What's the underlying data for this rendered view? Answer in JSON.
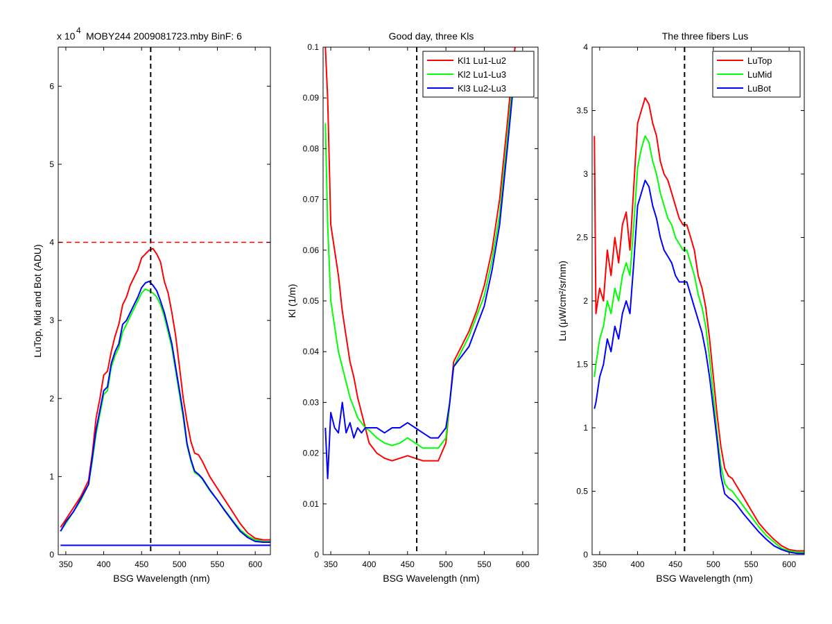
{
  "figure": {
    "background": "#ffffff"
  },
  "chart_data": [
    {
      "type": "line",
      "title": "MOBY244  2009081723.mby BinF: 6",
      "exponent_label": "x 10",
      "exponent_power": "4",
      "xlabel": "BSG Wavelength (nm)",
      "ylabel": "LuTop, Mid and Bot (ADU)",
      "xlim": [
        340,
        620
      ],
      "ylim": [
        0,
        6.5
      ],
      "y_scale_factor": 10000,
      "xticks": [
        350,
        400,
        450,
        500,
        550,
        600
      ],
      "yticks": [
        0,
        1,
        2,
        3,
        4,
        5,
        6
      ],
      "grid": false,
      "legend": null,
      "annotations": [
        {
          "kind": "vline",
          "x": 462,
          "color": "#000000",
          "dash": true
        },
        {
          "kind": "hline",
          "y": 4.0,
          "color": "#ff0000",
          "dash": true
        }
      ],
      "series": [
        {
          "color": "#ff0000",
          "x": [
            343,
            350,
            360,
            370,
            380,
            385,
            390,
            395,
            400,
            405,
            410,
            415,
            420,
            425,
            430,
            435,
            440,
            445,
            450,
            455,
            460,
            465,
            470,
            475,
            480,
            485,
            490,
            495,
            500,
            505,
            510,
            515,
            520,
            525,
            530,
            540,
            550,
            560,
            570,
            580,
            590,
            600,
            610,
            620
          ],
          "y": [
            0.35,
            0.45,
            0.6,
            0.75,
            0.95,
            1.3,
            1.75,
            2.0,
            2.3,
            2.35,
            2.6,
            2.8,
            2.95,
            3.2,
            3.3,
            3.45,
            3.55,
            3.65,
            3.8,
            3.85,
            3.9,
            3.92,
            3.85,
            3.75,
            3.5,
            3.35,
            3.1,
            2.8,
            2.4,
            2.0,
            1.7,
            1.45,
            1.3,
            1.28,
            1.2,
            1.0,
            0.85,
            0.7,
            0.55,
            0.4,
            0.28,
            0.21,
            0.19,
            0.19
          ]
        },
        {
          "color": "#00ff00",
          "x": [
            343,
            350,
            360,
            370,
            380,
            385,
            390,
            395,
            400,
            405,
            410,
            415,
            420,
            425,
            430,
            435,
            440,
            445,
            450,
            455,
            460,
            465,
            470,
            475,
            480,
            485,
            490,
            495,
            500,
            505,
            510,
            515,
            520,
            525,
            530,
            540,
            550,
            560,
            570,
            580,
            590,
            600,
            610,
            620
          ],
          "y": [
            0.3,
            0.4,
            0.55,
            0.7,
            0.9,
            1.2,
            1.55,
            1.8,
            2.05,
            2.1,
            2.4,
            2.55,
            2.65,
            2.85,
            2.95,
            3.05,
            3.15,
            3.25,
            3.35,
            3.4,
            3.38,
            3.35,
            3.3,
            3.2,
            3.05,
            2.85,
            2.65,
            2.35,
            2.05,
            1.75,
            1.4,
            1.2,
            1.05,
            1.02,
            0.97,
            0.82,
            0.7,
            0.57,
            0.44,
            0.32,
            0.24,
            0.19,
            0.17,
            0.17
          ]
        },
        {
          "color": "#0000ff",
          "x": [
            343,
            350,
            360,
            370,
            380,
            385,
            390,
            395,
            400,
            405,
            410,
            415,
            420,
            425,
            430,
            435,
            440,
            445,
            450,
            455,
            460,
            465,
            470,
            475,
            480,
            485,
            490,
            495,
            500,
            505,
            510,
            515,
            520,
            525,
            530,
            540,
            550,
            560,
            570,
            580,
            590,
            600,
            610,
            620
          ],
          "y": [
            0.3,
            0.42,
            0.55,
            0.72,
            0.9,
            1.25,
            1.6,
            1.85,
            2.1,
            2.15,
            2.45,
            2.6,
            2.7,
            2.95,
            3.0,
            3.1,
            3.2,
            3.3,
            3.42,
            3.48,
            3.5,
            3.45,
            3.38,
            3.25,
            3.1,
            2.9,
            2.7,
            2.4,
            2.1,
            1.8,
            1.42,
            1.22,
            1.07,
            1.03,
            0.98,
            0.83,
            0.7,
            0.56,
            0.43,
            0.3,
            0.22,
            0.17,
            0.16,
            0.16
          ]
        },
        {
          "color": "#0000ff",
          "x": [
            343,
            620
          ],
          "y": [
            0.12,
            0.12
          ]
        }
      ]
    },
    {
      "type": "line",
      "title": "Good day, three Kls",
      "xlabel": "BSG Wavelength (nm)",
      "ylabel": "Kl (1/m)",
      "xlim": [
        340,
        620
      ],
      "ylim": [
        0,
        0.1
      ],
      "xticks": [
        350,
        400,
        450,
        500,
        550,
        600
      ],
      "yticks": [
        0,
        0.01,
        0.02,
        0.03,
        0.04,
        0.05,
        0.06,
        0.07,
        0.08,
        0.09,
        0.1
      ],
      "grid": false,
      "legend": "top-right",
      "annotations": [
        {
          "kind": "vline",
          "x": 462,
          "color": "#000000",
          "dash": true
        }
      ],
      "series": [
        {
          "name": "Kl1 Lu1-Lu2",
          "color": "#ff0000",
          "x": [
            343,
            346,
            350,
            355,
            360,
            365,
            370,
            375,
            380,
            385,
            390,
            395,
            400,
            410,
            420,
            430,
            440,
            450,
            460,
            470,
            480,
            490,
            500,
            505,
            510,
            520,
            530,
            540,
            550,
            560,
            570,
            580,
            585,
            590
          ],
          "y": [
            0.1,
            0.09,
            0.065,
            0.06,
            0.055,
            0.048,
            0.043,
            0.038,
            0.035,
            0.031,
            0.028,
            0.025,
            0.022,
            0.02,
            0.019,
            0.0185,
            0.019,
            0.0195,
            0.019,
            0.0185,
            0.0185,
            0.0185,
            0.022,
            0.03,
            0.038,
            0.041,
            0.044,
            0.048,
            0.053,
            0.06,
            0.07,
            0.085,
            0.093,
            0.1
          ]
        },
        {
          "name": "Kl2 Lu1-Lu3",
          "color": "#00ff00",
          "x": [
            343,
            346,
            350,
            355,
            360,
            365,
            370,
            375,
            380,
            385,
            390,
            395,
            400,
            410,
            420,
            430,
            440,
            450,
            460,
            470,
            480,
            490,
            500,
            505,
            510,
            520,
            530,
            540,
            550,
            560,
            570,
            580,
            585,
            590
          ],
          "y": [
            0.085,
            0.065,
            0.05,
            0.045,
            0.04,
            0.037,
            0.034,
            0.031,
            0.029,
            0.027,
            0.026,
            0.025,
            0.0245,
            0.023,
            0.022,
            0.0215,
            0.022,
            0.023,
            0.022,
            0.021,
            0.021,
            0.021,
            0.023,
            0.03,
            0.037,
            0.04,
            0.043,
            0.047,
            0.051,
            0.058,
            0.067,
            0.082,
            0.09,
            0.098
          ]
        },
        {
          "name": "Kl3 Lu2-Lu3",
          "color": "#0000ff",
          "x": [
            343,
            346,
            350,
            355,
            360,
            365,
            370,
            375,
            380,
            385,
            390,
            395,
            400,
            410,
            420,
            430,
            440,
            450,
            460,
            470,
            480,
            490,
            500,
            505,
            510,
            520,
            530,
            540,
            550,
            560,
            570,
            580,
            585,
            590
          ],
          "y": [
            0.025,
            0.015,
            0.028,
            0.025,
            0.024,
            0.03,
            0.024,
            0.026,
            0.023,
            0.025,
            0.024,
            0.025,
            0.025,
            0.025,
            0.024,
            0.025,
            0.025,
            0.026,
            0.025,
            0.024,
            0.023,
            0.023,
            0.025,
            0.03,
            0.037,
            0.039,
            0.041,
            0.045,
            0.049,
            0.056,
            0.065,
            0.08,
            0.088,
            0.096
          ]
        }
      ]
    },
    {
      "type": "line",
      "title": "The three fibers Lus",
      "xlabel": "BSG Wavelength (nm)",
      "ylabel": "Lu (μW/cm²/sr/nm)",
      "xlim": [
        340,
        620
      ],
      "ylim": [
        0,
        4
      ],
      "xticks": [
        350,
        400,
        450,
        500,
        550,
        600
      ],
      "yticks": [
        0,
        0.5,
        1,
        1.5,
        2,
        2.5,
        3,
        3.5,
        4
      ],
      "grid": false,
      "legend": "top-right",
      "annotations": [
        {
          "kind": "vline",
          "x": 462,
          "color": "#000000",
          "dash": true
        }
      ],
      "series": [
        {
          "name": "LuTop",
          "color": "#ff0000",
          "x": [
            343,
            345,
            350,
            355,
            360,
            365,
            370,
            375,
            380,
            385,
            390,
            395,
            400,
            405,
            410,
            415,
            420,
            425,
            430,
            435,
            440,
            445,
            450,
            455,
            460,
            465,
            470,
            475,
            480,
            485,
            490,
            495,
            500,
            505,
            510,
            515,
            520,
            525,
            530,
            540,
            550,
            560,
            570,
            580,
            590,
            600,
            610,
            620
          ],
          "y": [
            3.3,
            1.9,
            2.1,
            2.0,
            2.4,
            2.2,
            2.5,
            2.3,
            2.6,
            2.7,
            2.4,
            2.9,
            3.4,
            3.5,
            3.6,
            3.55,
            3.4,
            3.3,
            3.1,
            3.0,
            2.95,
            2.85,
            2.75,
            2.65,
            2.6,
            2.6,
            2.5,
            2.4,
            2.2,
            2.1,
            1.95,
            1.7,
            1.4,
            1.1,
            0.85,
            0.68,
            0.62,
            0.6,
            0.55,
            0.45,
            0.35,
            0.25,
            0.18,
            0.12,
            0.07,
            0.04,
            0.03,
            0.03
          ]
        },
        {
          "name": "LuMid",
          "color": "#00ff00",
          "x": [
            343,
            345,
            350,
            355,
            360,
            365,
            370,
            375,
            380,
            385,
            390,
            395,
            400,
            405,
            410,
            415,
            420,
            425,
            430,
            435,
            440,
            445,
            450,
            455,
            460,
            465,
            470,
            475,
            480,
            485,
            490,
            495,
            500,
            505,
            510,
            515,
            520,
            525,
            530,
            540,
            550,
            560,
            570,
            580,
            590,
            600,
            610,
            620
          ],
          "y": [
            1.4,
            1.5,
            1.7,
            1.8,
            2.0,
            1.9,
            2.1,
            2.0,
            2.2,
            2.3,
            2.2,
            2.6,
            3.05,
            3.2,
            3.3,
            3.25,
            3.1,
            3.0,
            2.85,
            2.75,
            2.65,
            2.6,
            2.5,
            2.45,
            2.4,
            2.4,
            2.3,
            2.2,
            2.05,
            1.95,
            1.8,
            1.55,
            1.25,
            0.95,
            0.7,
            0.56,
            0.52,
            0.5,
            0.46,
            0.38,
            0.3,
            0.22,
            0.15,
            0.1,
            0.05,
            0.03,
            0.02,
            0.02
          ]
        },
        {
          "name": "LuBot",
          "color": "#0000ff",
          "x": [
            343,
            345,
            350,
            355,
            360,
            365,
            370,
            375,
            380,
            385,
            390,
            395,
            400,
            405,
            410,
            415,
            420,
            425,
            430,
            435,
            440,
            445,
            450,
            455,
            460,
            465,
            470,
            475,
            480,
            485,
            490,
            495,
            500,
            505,
            510,
            515,
            520,
            525,
            530,
            540,
            550,
            560,
            570,
            580,
            590,
            600,
            610,
            620
          ],
          "y": [
            1.15,
            1.2,
            1.4,
            1.5,
            1.7,
            1.6,
            1.8,
            1.7,
            1.9,
            2.0,
            1.9,
            2.3,
            2.75,
            2.85,
            2.95,
            2.9,
            2.75,
            2.65,
            2.5,
            2.4,
            2.35,
            2.3,
            2.2,
            2.15,
            2.15,
            2.15,
            2.05,
            1.95,
            1.85,
            1.75,
            1.6,
            1.4,
            1.15,
            0.9,
            0.62,
            0.48,
            0.45,
            0.43,
            0.4,
            0.32,
            0.25,
            0.18,
            0.12,
            0.07,
            0.04,
            0.02,
            0.01,
            0.01
          ]
        }
      ]
    }
  ]
}
